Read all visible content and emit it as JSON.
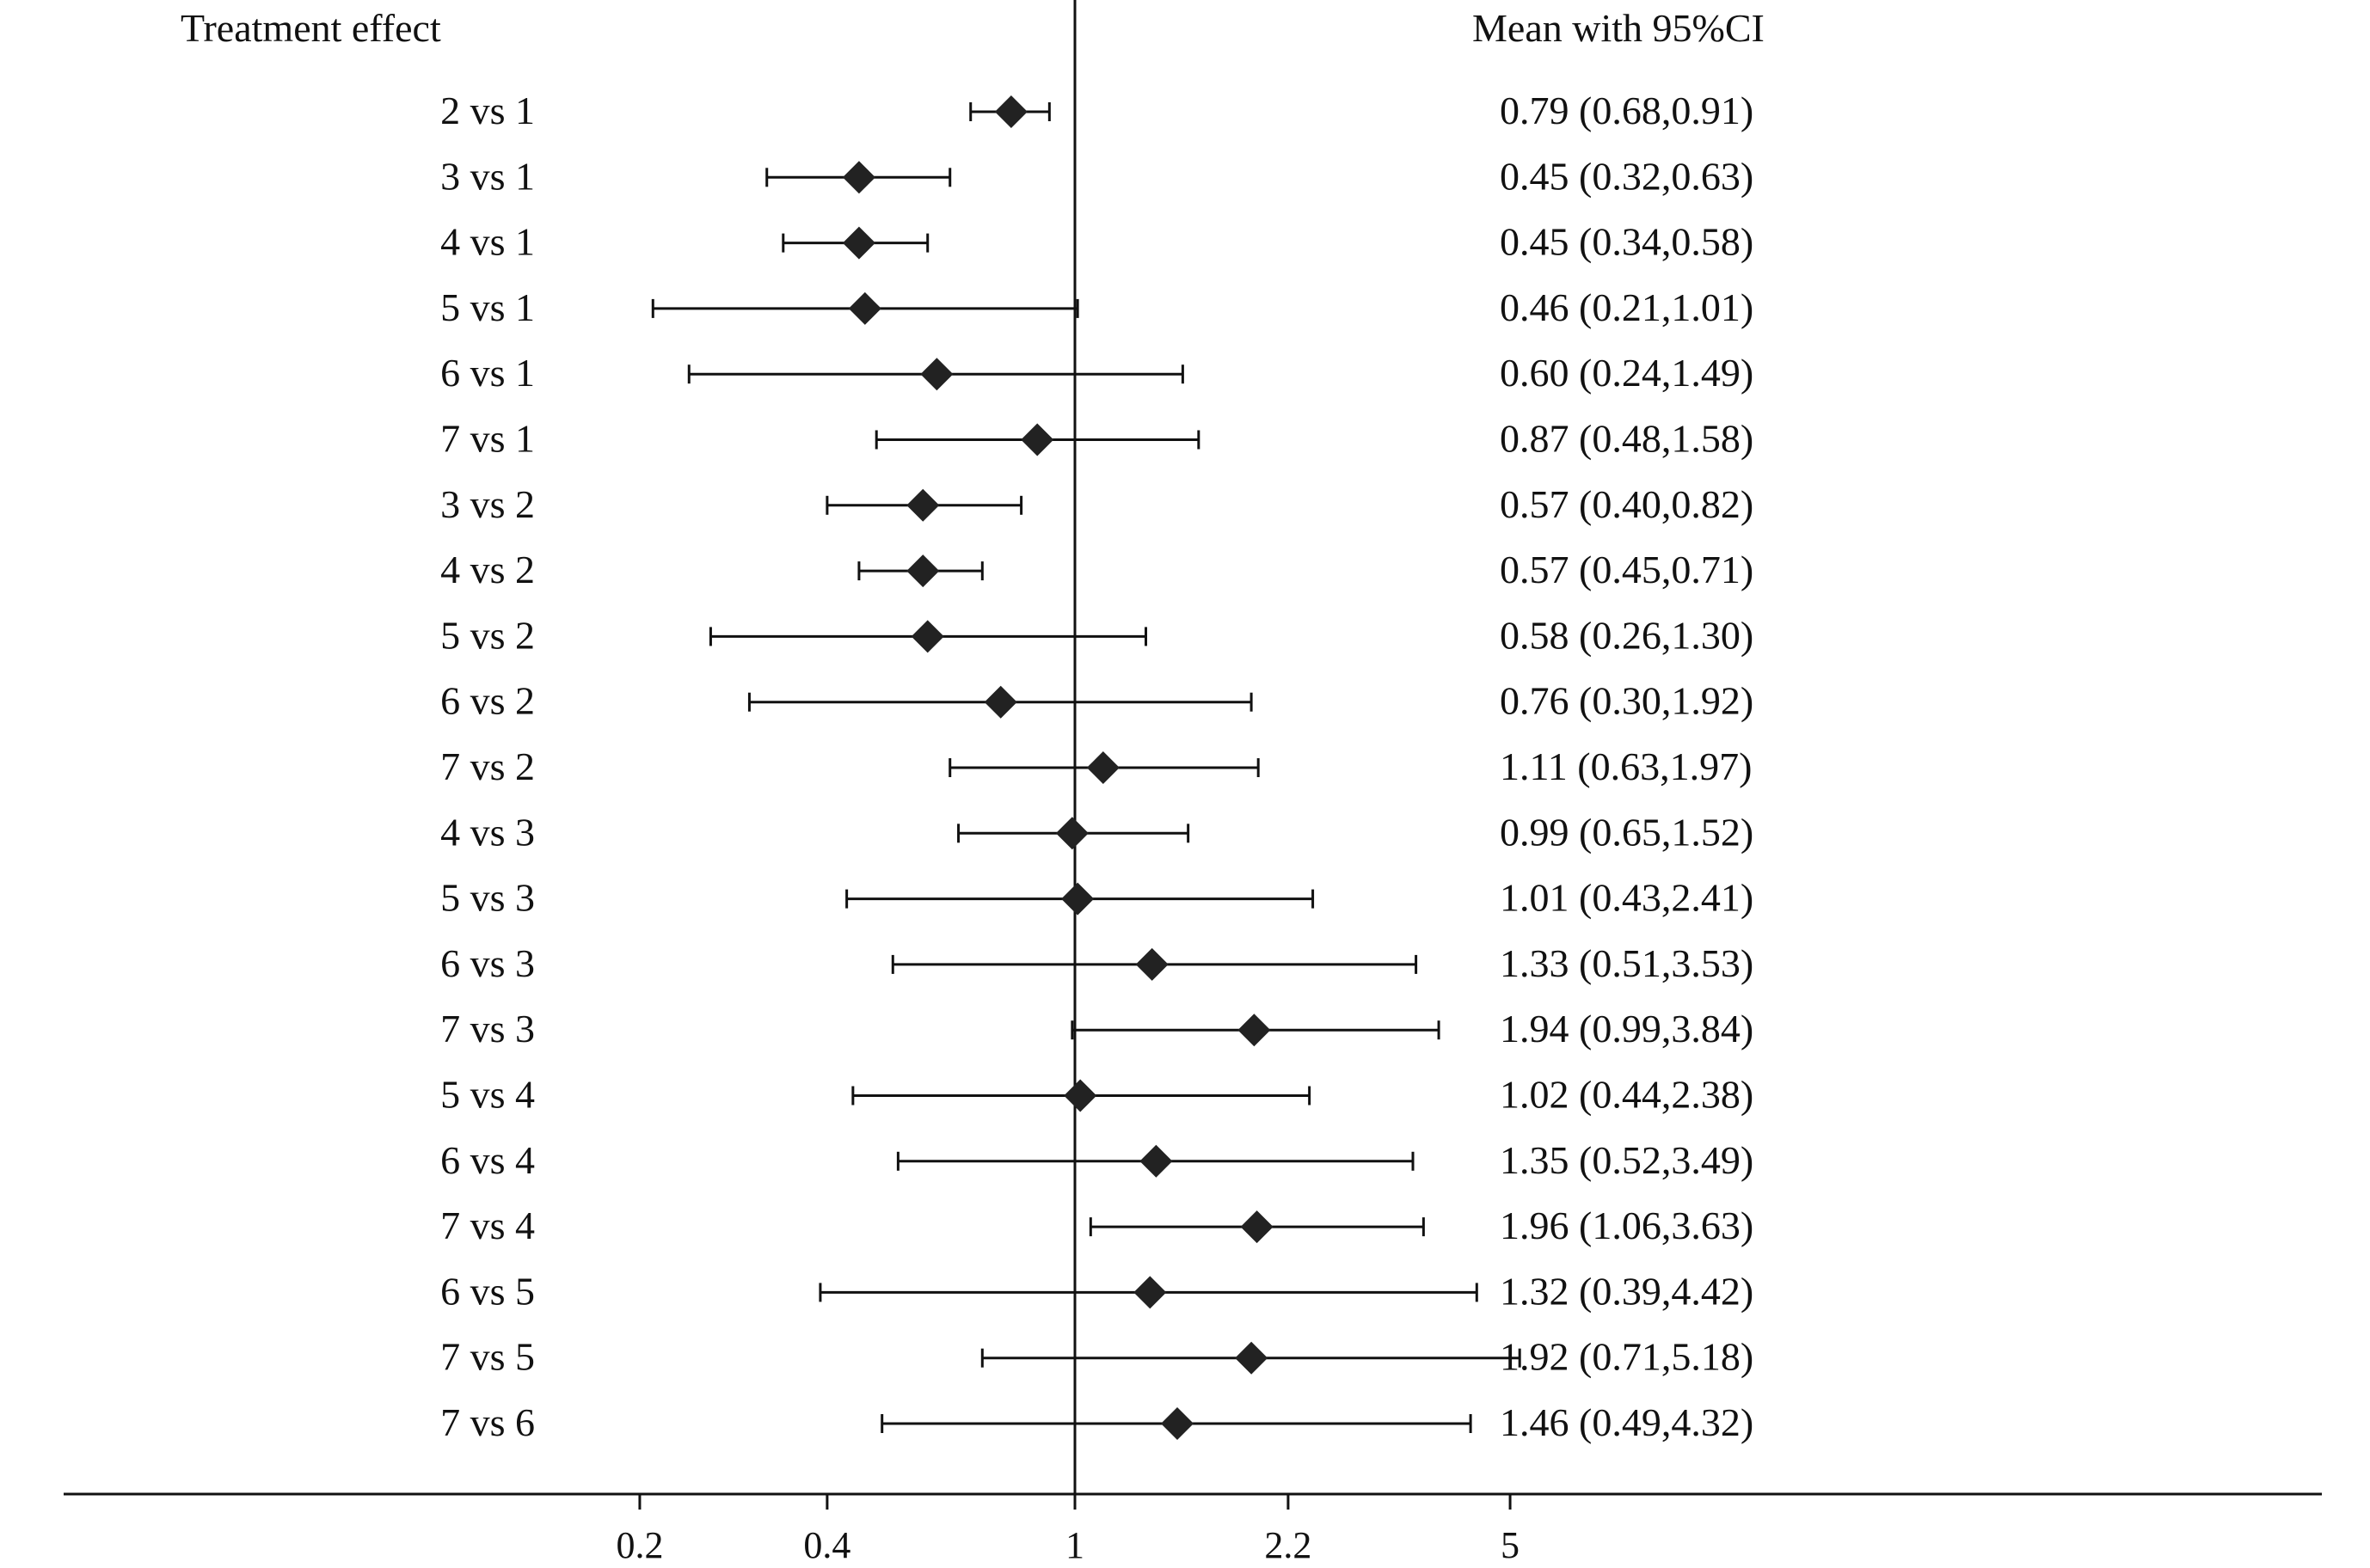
{
  "chart_data": {
    "type": "forest",
    "column_headers": {
      "left": "Treatment effect",
      "right": "Mean with 95%CI"
    },
    "x_scale": "log",
    "x_ticks": [
      "0.2",
      "0.4",
      "1",
      "2.2",
      "5"
    ],
    "reference_line": 1,
    "rows": [
      {
        "label": "2 vs 1",
        "mean": 0.79,
        "lo": 0.68,
        "hi": 0.91,
        "text": "0.79 (0.68,0.91)"
      },
      {
        "label": "3 vs 1",
        "mean": 0.45,
        "lo": 0.32,
        "hi": 0.63,
        "text": "0.45 (0.32,0.63)"
      },
      {
        "label": "4 vs 1",
        "mean": 0.45,
        "lo": 0.34,
        "hi": 0.58,
        "text": "0.45 (0.34,0.58)"
      },
      {
        "label": "5 vs 1",
        "mean": 0.46,
        "lo": 0.21,
        "hi": 1.01,
        "text": "0.46 (0.21,1.01)"
      },
      {
        "label": "6 vs 1",
        "mean": 0.6,
        "lo": 0.24,
        "hi": 1.49,
        "text": "0.60 (0.24,1.49)"
      },
      {
        "label": "7 vs 1",
        "mean": 0.87,
        "lo": 0.48,
        "hi": 1.58,
        "text": "0.87 (0.48,1.58)"
      },
      {
        "label": "3 vs 2",
        "mean": 0.57,
        "lo": 0.4,
        "hi": 0.82,
        "text": "0.57 (0.40,0.82)"
      },
      {
        "label": "4 vs 2",
        "mean": 0.57,
        "lo": 0.45,
        "hi": 0.71,
        "text": "0.57 (0.45,0.71)"
      },
      {
        "label": "5 vs 2",
        "mean": 0.58,
        "lo": 0.26,
        "hi": 1.3,
        "text": "0.58 (0.26,1.30)"
      },
      {
        "label": "6 vs 2",
        "mean": 0.76,
        "lo": 0.3,
        "hi": 1.92,
        "text": "0.76 (0.30,1.92)"
      },
      {
        "label": "7 vs 2",
        "mean": 1.11,
        "lo": 0.63,
        "hi": 1.97,
        "text": "1.11 (0.63,1.97)"
      },
      {
        "label": "4 vs 3",
        "mean": 0.99,
        "lo": 0.65,
        "hi": 1.52,
        "text": "0.99 (0.65,1.52)"
      },
      {
        "label": "5 vs 3",
        "mean": 1.01,
        "lo": 0.43,
        "hi": 2.41,
        "text": "1.01 (0.43,2.41)"
      },
      {
        "label": "6 vs 3",
        "mean": 1.33,
        "lo": 0.51,
        "hi": 3.53,
        "text": "1.33 (0.51,3.53)"
      },
      {
        "label": "7 vs 3",
        "mean": 1.94,
        "lo": 0.99,
        "hi": 3.84,
        "text": "1.94 (0.99,3.84)"
      },
      {
        "label": "5 vs 4",
        "mean": 1.02,
        "lo": 0.44,
        "hi": 2.38,
        "text": "1.02 (0.44,2.38)"
      },
      {
        "label": "6 vs 4",
        "mean": 1.35,
        "lo": 0.52,
        "hi": 3.49,
        "text": "1.35 (0.52,3.49)"
      },
      {
        "label": "7 vs 4",
        "mean": 1.96,
        "lo": 1.06,
        "hi": 3.63,
        "text": "1.96 (1.06,3.63)"
      },
      {
        "label": "6 vs 5",
        "mean": 1.32,
        "lo": 0.39,
        "hi": 4.42,
        "text": "1.32 (0.39,4.42)"
      },
      {
        "label": "7 vs 5",
        "mean": 1.92,
        "lo": 0.71,
        "hi": 5.18,
        "text": "1.92 (0.71,5.18)"
      },
      {
        "label": "7 vs 6",
        "mean": 1.46,
        "lo": 0.49,
        "hi": 4.32,
        "text": "1.46 (0.49,4.32)"
      }
    ],
    "colors": {
      "ink": "#111111",
      "marker": "#222222",
      "background": "#ffffff"
    }
  }
}
